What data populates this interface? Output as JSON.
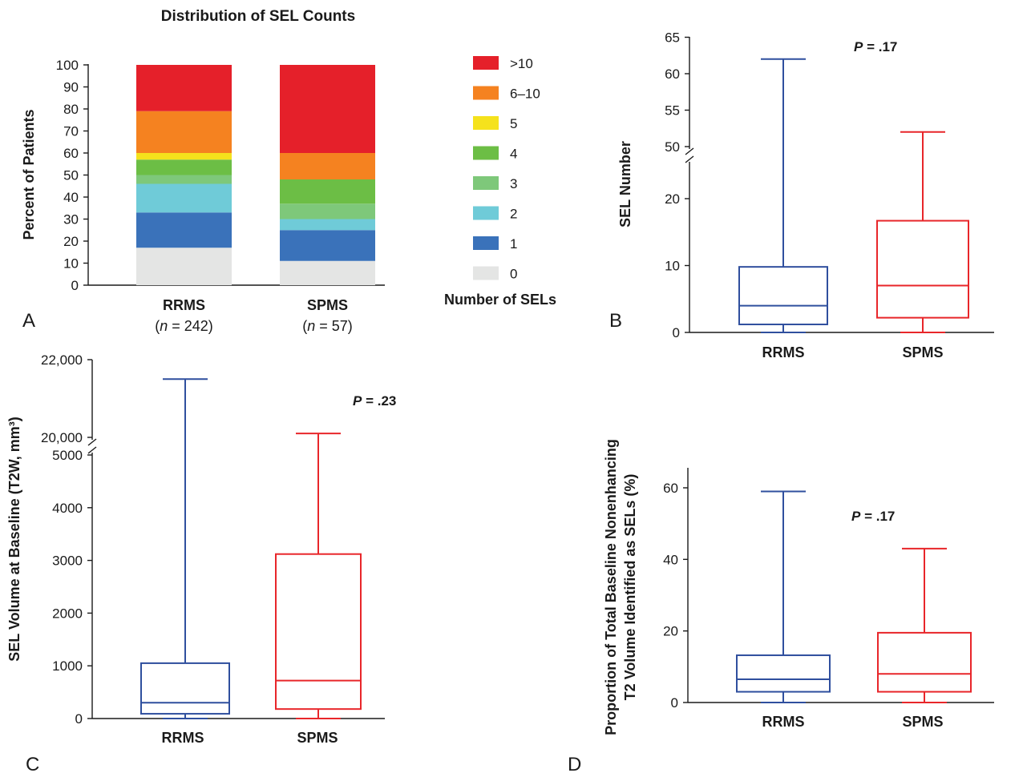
{
  "colors": {
    "rrms": "#2f4f9e",
    "spms": "#e8262a",
    "seg_gt10": "#e5202a",
    "seg_6_10": "#f58220",
    "seg_5": "#f5e21c",
    "seg_4": "#6cbe45",
    "seg_3": "#7ec87a",
    "seg_2": "#6fcbd8",
    "seg_1": "#3a72ba",
    "seg_0": "#e4e5e4"
  },
  "chart_data": [
    {
      "panel": "A",
      "type": "bar",
      "stacked": true,
      "title": "Distribution of SEL Counts",
      "ylabel": "Percent of Patients",
      "ylim": [
        0,
        100
      ],
      "yticks": [
        "0",
        "10",
        "20",
        "30",
        "40",
        "50",
        "60",
        "70",
        "80",
        "90",
        "100"
      ],
      "categories": [
        "RRMS",
        "SPMS"
      ],
      "category_ns": [
        "242",
        "57"
      ],
      "n_prefix": "n",
      "n_eq": " = ",
      "legend_title": "Number of SELs",
      "series": [
        {
          "name": "0",
          "values": [
            17,
            11
          ]
        },
        {
          "name": "1",
          "values": [
            16,
            14
          ]
        },
        {
          "name": "2",
          "values": [
            13,
            5
          ]
        },
        {
          "name": "3",
          "values": [
            4,
            7
          ]
        },
        {
          "name": "4",
          "values": [
            7,
            11
          ]
        },
        {
          "name": "5",
          "values": [
            3,
            0
          ]
        },
        {
          "name": "6–10",
          "values": [
            19,
            12
          ]
        },
        {
          "name": ">10",
          "values": [
            21,
            40
          ]
        }
      ]
    },
    {
      "panel": "B",
      "type": "box",
      "ylabel": "SEL Number",
      "categories": [
        "RRMS",
        "SPMS"
      ],
      "annotation": ".17",
      "axis_break": {
        "lower": [
          0,
          25
        ],
        "upper": [
          50,
          65
        ]
      },
      "yticks_lower": [
        "0",
        "10",
        "20"
      ],
      "yticks_upper": [
        "50",
        "55",
        "60",
        "65"
      ],
      "boxes": [
        {
          "min": 0,
          "q1": 1.2,
          "median": 4,
          "q3": 9.8,
          "max": 62
        },
        {
          "min": 0,
          "q1": 2.2,
          "median": 7,
          "q3": 16.7,
          "max": 52
        }
      ]
    },
    {
      "panel": "C",
      "type": "box",
      "ylabel": "SEL Volume at Baseline (T2W, mm³)",
      "categories": [
        "RRMS",
        "SPMS"
      ],
      "annotation": ".23",
      "axis_break": {
        "lower": [
          0,
          5000
        ],
        "upper": [
          20000,
          22000
        ]
      },
      "yticks_lower": [
        "0",
        "1000",
        "2000",
        "3000",
        "4000",
        "5000"
      ],
      "yticks_upper": [
        "20,000",
        "22,000"
      ],
      "boxes": [
        {
          "min": 0,
          "q1": 90,
          "median": 300,
          "q3": 1050,
          "max": 21500
        },
        {
          "min": 0,
          "q1": 180,
          "median": 720,
          "q3": 3120,
          "max": 20100
        }
      ]
    },
    {
      "panel": "D",
      "type": "box",
      "ylabel_line1": "Proportion of Total Baseline Nonenhancing",
      "ylabel_line2": "T2 Volume Identified as SELs (%)",
      "categories": [
        "RRMS",
        "SPMS"
      ],
      "annotation": ".17",
      "ylim": [
        0,
        65
      ],
      "yticks": [
        "0",
        "20",
        "40",
        "60"
      ],
      "boxes": [
        {
          "min": 0,
          "q1": 3,
          "median": 6.5,
          "q3": 13.2,
          "max": 59
        },
        {
          "min": 0,
          "q1": 3,
          "median": 8,
          "q3": 19.5,
          "max": 43
        }
      ]
    }
  ]
}
